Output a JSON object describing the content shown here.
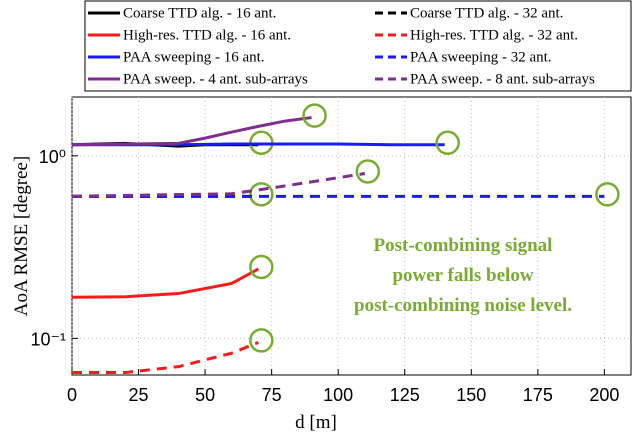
{
  "chart_data": {
    "type": "line",
    "xlabel": "d [m]",
    "ylabel": "AoA RMSE [degree]",
    "xlim": [
      0,
      210
    ],
    "xticks": [
      0,
      25,
      50,
      75,
      100,
      125,
      150,
      175,
      200
    ],
    "ylim": [
      0.063,
      2.1
    ],
    "log_y": true,
    "yticks": [
      {
        "value": 0.1,
        "label": "10⁻¹"
      },
      {
        "value": 1,
        "label": "10⁰"
      }
    ],
    "grid": true,
    "legend": "top",
    "annotation": [
      "Post-combining signal",
      "power falls below",
      "post-combining noise level."
    ],
    "annotation_color": "#77ac30",
    "series": [
      {
        "name": "Coarse TTD alg. - 16 ant.",
        "color": "#000000",
        "dashed": false,
        "x": [
          0,
          10,
          20,
          30,
          40,
          50,
          60,
          70
        ],
        "values": [
          1.15,
          1.16,
          1.17,
          1.15,
          1.13,
          1.15,
          1.15,
          1.15
        ]
      },
      {
        "name": "Coarse TTD alg. - 32 ant.",
        "color": "#000000",
        "dashed": true,
        "x": [
          0,
          20,
          40,
          60,
          70
        ],
        "values": [
          0.6,
          0.6,
          0.6,
          0.6,
          0.6
        ]
      },
      {
        "name": "High-res. TTD alg. - 16 ant.",
        "color": "#ff1a1a",
        "dashed": false,
        "x": [
          0,
          20,
          40,
          60,
          70
        ],
        "values": [
          0.168,
          0.169,
          0.176,
          0.2,
          0.24
        ]
      },
      {
        "name": "High-res. TTD alg. - 32 ant.",
        "color": "#ff1a1a",
        "dashed": true,
        "x": [
          0,
          20,
          40,
          60,
          70
        ],
        "values": [
          0.065,
          0.065,
          0.07,
          0.083,
          0.095
        ]
      },
      {
        "name": "PAA sweeping - 16 ant.",
        "color": "#1a1aff",
        "dashed": false,
        "x": [
          0,
          20,
          40,
          60,
          80,
          100,
          120,
          140
        ],
        "values": [
          1.15,
          1.15,
          1.15,
          1.16,
          1.16,
          1.16,
          1.15,
          1.15
        ]
      },
      {
        "name": "PAA sweeping - 32 ant.",
        "color": "#1a1aff",
        "dashed": true,
        "x": [
          0,
          25,
          50,
          75,
          100,
          125,
          150,
          175,
          200
        ],
        "values": [
          0.6,
          0.6,
          0.6,
          0.6,
          0.6,
          0.6,
          0.6,
          0.6,
          0.6
        ]
      },
      {
        "name": "PAA sweep. - 4 ant. sub-arrays",
        "color": "#7e2f8e",
        "dashed": false,
        "x": [
          0,
          40,
          50,
          60,
          70,
          80,
          90
        ],
        "values": [
          1.15,
          1.17,
          1.25,
          1.35,
          1.45,
          1.55,
          1.62
        ]
      },
      {
        "name": "PAA sweep. - 8 ant. sub-arrays",
        "color": "#7e2f8e",
        "dashed": true,
        "x": [
          0,
          60,
          70,
          90,
          110
        ],
        "values": [
          0.6,
          0.62,
          0.65,
          0.72,
          0.8
        ]
      }
    ]
  }
}
